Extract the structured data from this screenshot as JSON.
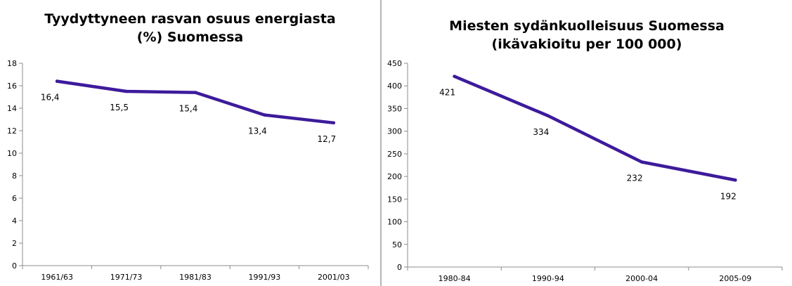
{
  "chart_data": [
    {
      "type": "line",
      "title": [
        "Tyydyttyneen rasvan osuus energiasta",
        "(%) Suomessa"
      ],
      "categories": [
        "1961/63",
        "1971/73",
        "1981/83",
        "1991/93",
        "2001/03"
      ],
      "series": [
        {
          "values": [
            16.4,
            15.5,
            15.4,
            13.4,
            12.7
          ],
          "labels": [
            "16,4",
            "15,5",
            "15,4",
            "13,4",
            "12,7"
          ]
        }
      ],
      "ylim": [
        0,
        18
      ],
      "yticks": [
        "0",
        "2",
        "4",
        "6",
        "8",
        "10",
        "12",
        "14",
        "16",
        "18"
      ],
      "grid": false,
      "legend": "none",
      "line_color": "#3d1b9b"
    },
    {
      "type": "line",
      "title": [
        "Miesten sydänkuolleisuus Suomessa",
        "(ikävakioitu per 100 000)"
      ],
      "categories": [
        "1980-84",
        "1990-94",
        "2000-04",
        "2005-09"
      ],
      "series": [
        {
          "values": [
            421,
            334,
            232,
            192
          ],
          "labels": [
            "421",
            "334",
            "232",
            "192"
          ]
        }
      ],
      "ylim": [
        0,
        450
      ],
      "yticks": [
        "0",
        "50",
        "100",
        "150",
        "200",
        "250",
        "300",
        "350",
        "400",
        "450"
      ],
      "grid": false,
      "legend": "none",
      "line_color": "#3d1b9b"
    }
  ]
}
